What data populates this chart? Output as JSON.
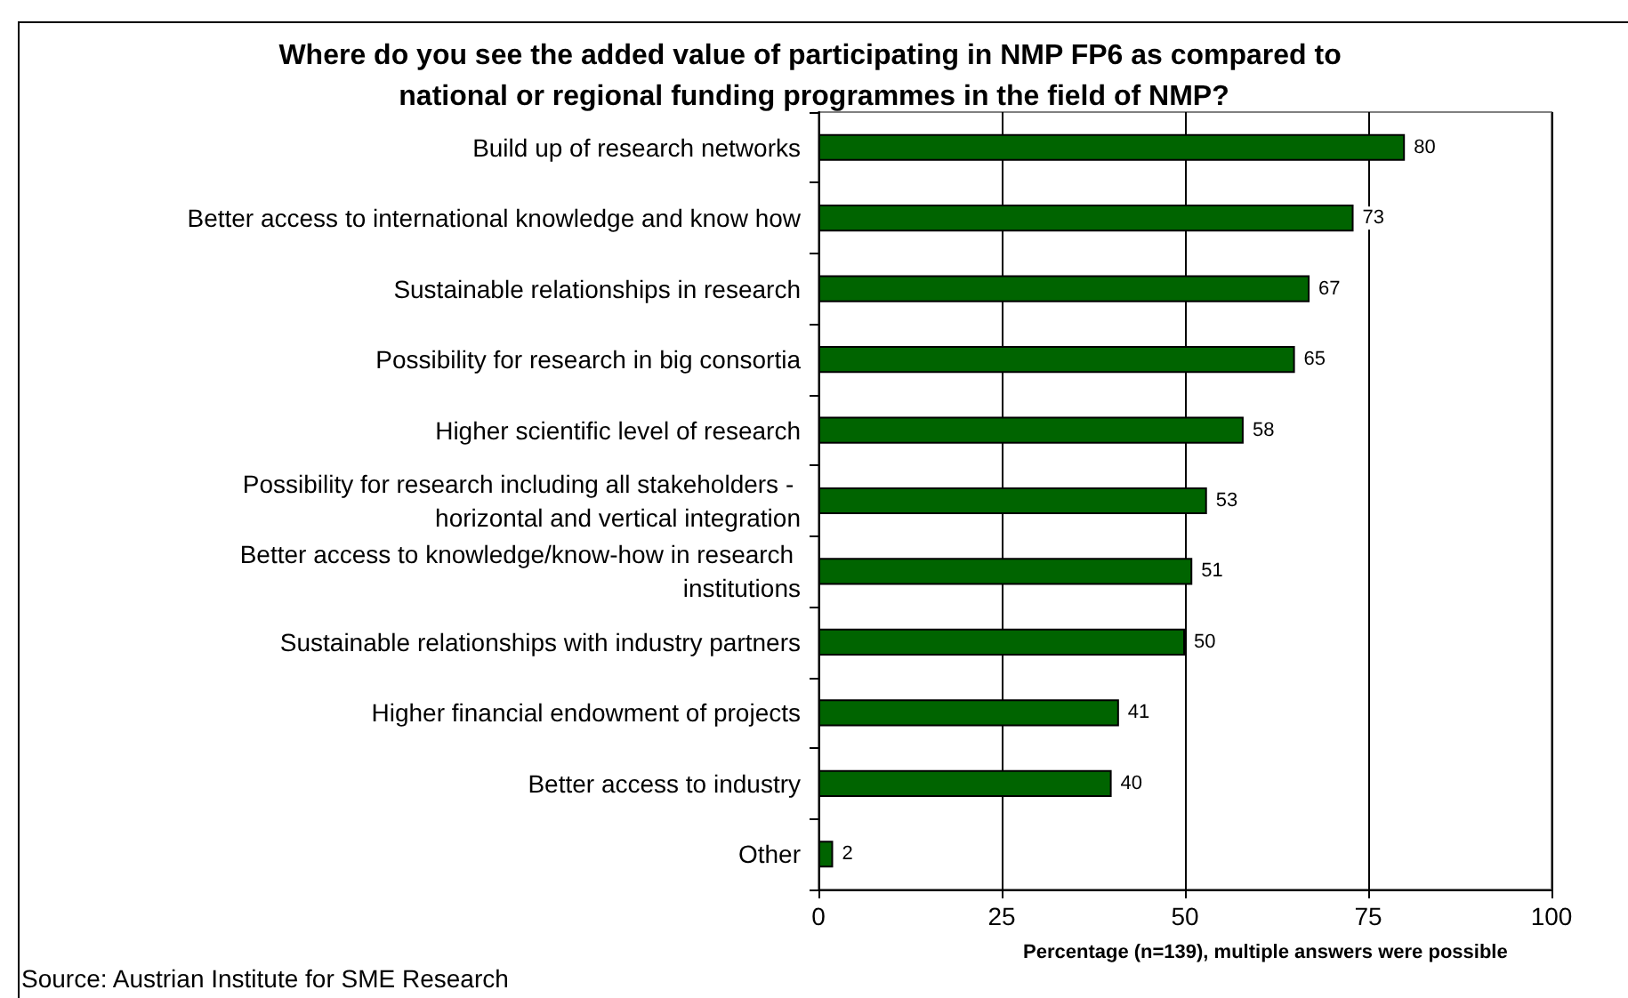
{
  "chart_data": {
    "type": "bar",
    "orientation": "horizontal",
    "title": "Where do you see the added value of participating in NMP FP6 as compared to national or regional funding programmes in the field of NMP?",
    "xlabel": "Percentage (n=139), multiple answers were possible",
    "categories": [
      "Build up of research networks",
      "Better access to international knowledge and know how",
      "Sustainable relationships in research",
      "Possibility for research in big consortia",
      "Higher scientific level of research",
      "Possibility for research including all stakeholders - horizontal and vertical integration",
      "Better access to knowledge/know-how in research institutions",
      "Sustainable relationships with industry partners",
      "Higher financial endowment of projects",
      "Better access to industry",
      "Other"
    ],
    "values": [
      80,
      73,
      67,
      65,
      58,
      53,
      51,
      50,
      41,
      40,
      2
    ],
    "color": "#006400",
    "xlim": [
      0,
      100
    ],
    "xticks": [
      0,
      25,
      50,
      75,
      100
    ],
    "grid": "x",
    "data_labels": true,
    "annotations": [
      "Source: Austrian Institute for SME Research"
    ]
  }
}
